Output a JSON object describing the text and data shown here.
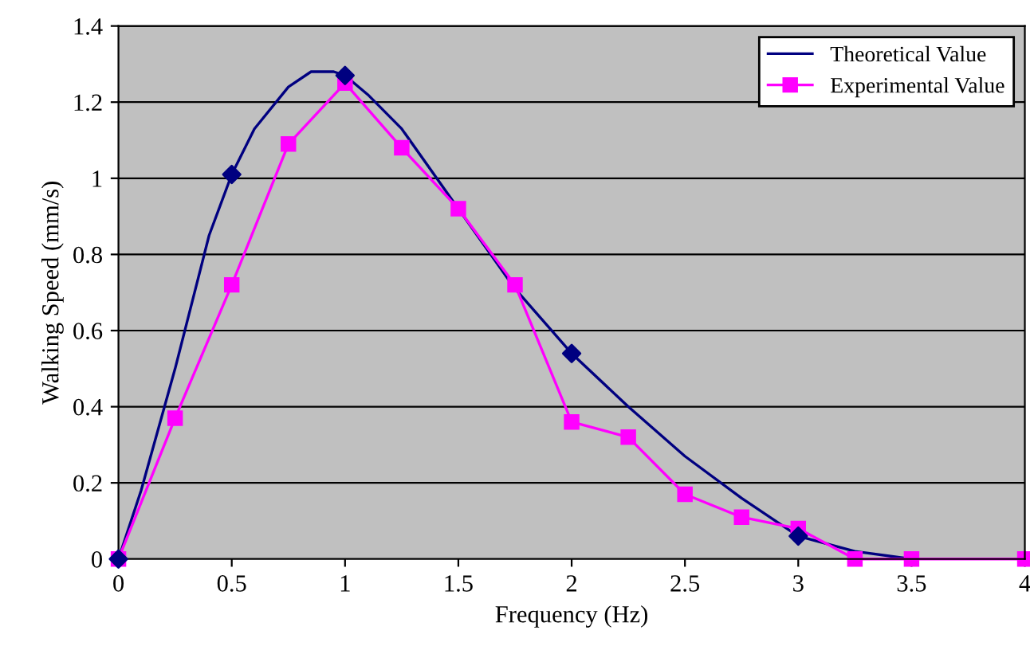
{
  "chart_data": {
    "type": "line",
    "xlabel": "Frequency (Hz)",
    "ylabel": "Walking Speed (mm/s)",
    "xlim": [
      0,
      4
    ],
    "ylim": [
      0,
      1.4
    ],
    "xticks": [
      0,
      0.5,
      1,
      1.5,
      2,
      2.5,
      3,
      3.5,
      4
    ],
    "yticks": [
      0,
      0.2,
      0.4,
      0.6,
      0.8,
      1,
      1.2,
      1.4
    ],
    "grid": "y",
    "legend": "top right",
    "series": [
      {
        "name": "Theoretical Value",
        "color": "#000080",
        "marker": "none",
        "x": [
          0,
          0.1,
          0.25,
          0.4,
          0.5,
          0.6,
          0.75,
          0.85,
          0.95,
          1.0,
          1.1,
          1.25,
          1.5,
          1.75,
          2.0,
          2.25,
          2.5,
          2.75,
          3.0,
          3.25,
          3.5
        ],
        "values": [
          0,
          0.18,
          0.5,
          0.85,
          1.01,
          1.13,
          1.24,
          1.28,
          1.28,
          1.27,
          1.22,
          1.13,
          0.92,
          0.71,
          0.54,
          0.4,
          0.27,
          0.16,
          0.06,
          0.02,
          0
        ]
      },
      {
        "type": "scatter",
        "color": "#000080",
        "marker": "diamond",
        "x": [
          0,
          0.5,
          1,
          2,
          3
        ],
        "values": [
          0,
          1.01,
          1.27,
          0.54,
          0.06
        ]
      },
      {
        "name": "Experimental Value",
        "color": "#ff00ff",
        "marker": "square",
        "x": [
          0,
          0.25,
          0.5,
          0.75,
          1,
          1.25,
          1.5,
          1.75,
          2,
          2.25,
          2.5,
          2.75,
          3,
          3.25,
          3.5,
          4
        ],
        "values": [
          0,
          0.37,
          0.72,
          1.09,
          1.25,
          1.08,
          0.92,
          0.72,
          0.36,
          0.32,
          0.17,
          0.11,
          0.08,
          0,
          0,
          0
        ]
      }
    ]
  }
}
